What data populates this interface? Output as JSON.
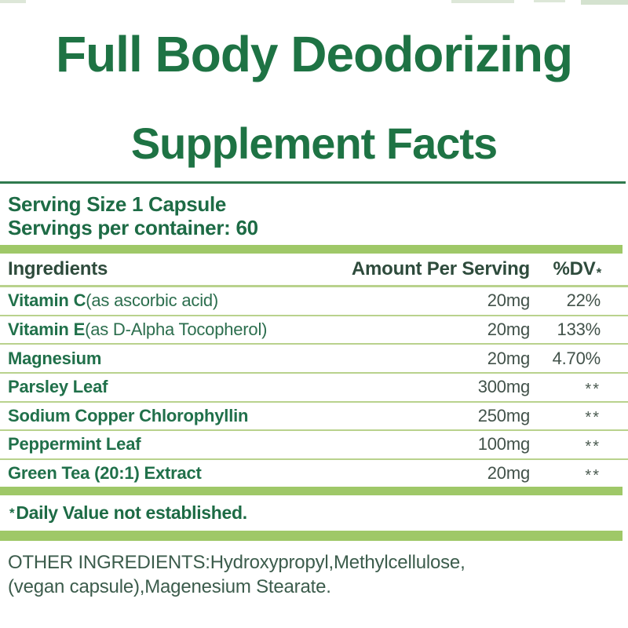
{
  "colors": {
    "title_green": "#1e7344",
    "text_green": "#1d6b45",
    "header_text": "#2e4b3c",
    "amount_text": "#42524a",
    "thick_bar": "#9fc868",
    "row_separator": "#b9d28d",
    "dark_rule": "#2f7a4e",
    "background": "#ffffff"
  },
  "title": "Full Body Deodorizing",
  "subtitle": "Supplement Facts",
  "serving": {
    "line1": "Serving Size 1 Capsule",
    "line2": "Servings per container: 60"
  },
  "table": {
    "headers": {
      "ingredients": "Ingredients",
      "amount": "Amount Per Serving",
      "dv": "%DV",
      "dv_asterisk": "*"
    },
    "rows": [
      {
        "name": "Vitamin C",
        "detail": "(as ascorbic acid)",
        "amount": "20mg",
        "dv": "22%"
      },
      {
        "name": "Vitamin E",
        "detail": "(as D-Alpha Tocopherol)",
        "amount": "20mg",
        "dv": "133%"
      },
      {
        "name": "Magnesium",
        "detail": "",
        "amount": "20mg",
        "dv": "4.70%"
      },
      {
        "name": "Parsley Leaf",
        "detail": "",
        "amount": "300mg",
        "dv": "**"
      },
      {
        "name": "Sodium Copper Chlorophyllin",
        "detail": "",
        "amount": "250mg",
        "dv": "**"
      },
      {
        "name": "Peppermint Leaf",
        "detail": "",
        "amount": "100mg",
        "dv": "**"
      },
      {
        "name": "Green Tea (20:1) Extract",
        "detail": "",
        "amount": "20mg",
        "dv": "**"
      }
    ]
  },
  "footnote": {
    "asterisk": "*",
    "text": "Daily Value not established."
  },
  "other_ingredients": {
    "line1": "OTHER INGREDIENTS:Hydroxypropyl,Methylcellulose,",
    "line2": "(vegan capsule),Magenesium Stearate."
  }
}
